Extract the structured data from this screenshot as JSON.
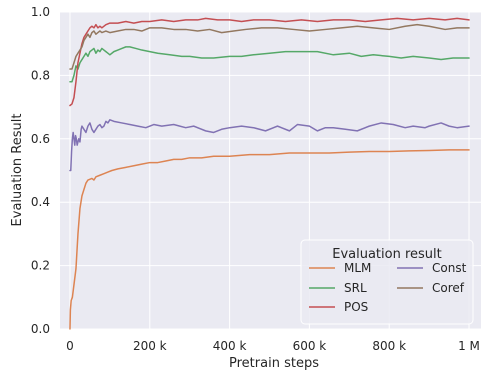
{
  "chart_data": {
    "type": "line",
    "xlabel": "Pretrain steps",
    "ylabel": "Evaluation Result",
    "xlim": [
      -25000,
      1030000
    ],
    "ylim": [
      0,
      1.0
    ],
    "x_ticks": [
      0,
      200000,
      400000,
      600000,
      800000,
      1000000
    ],
    "x_tick_labels": [
      "0",
      "200 k",
      "400 k",
      "600 k",
      "800 k",
      "1 M"
    ],
    "y_ticks": [
      0.0,
      0.2,
      0.4,
      0.6,
      0.8,
      1.0
    ],
    "y_tick_labels": [
      "0.0",
      "0.2",
      "0.4",
      "0.6",
      "0.8",
      "1.0"
    ],
    "grid": true,
    "legend": {
      "title": "Evaluation result",
      "placement": "lower-right",
      "columns": 2
    },
    "series": [
      {
        "name": "MLM",
        "color": "#dd8452",
        "points": [
          [
            0,
            0.0
          ],
          [
            1000,
            0.06
          ],
          [
            3000,
            0.09
          ],
          [
            6000,
            0.1
          ],
          [
            10000,
            0.14
          ],
          [
            15000,
            0.19
          ],
          [
            20000,
            0.3
          ],
          [
            25000,
            0.38
          ],
          [
            30000,
            0.42
          ],
          [
            35000,
            0.44
          ],
          [
            40000,
            0.46
          ],
          [
            45000,
            0.47
          ],
          [
            55000,
            0.475
          ],
          [
            60000,
            0.47
          ],
          [
            65000,
            0.48
          ],
          [
            75000,
            0.485
          ],
          [
            85000,
            0.49
          ],
          [
            95000,
            0.495
          ],
          [
            105000,
            0.5
          ],
          [
            120000,
            0.505
          ],
          [
            140000,
            0.51
          ],
          [
            160000,
            0.515
          ],
          [
            180000,
            0.52
          ],
          [
            200000,
            0.525
          ],
          [
            220000,
            0.525
          ],
          [
            240000,
            0.53
          ],
          [
            260000,
            0.535
          ],
          [
            280000,
            0.535
          ],
          [
            300000,
            0.54
          ],
          [
            330000,
            0.54
          ],
          [
            360000,
            0.545
          ],
          [
            400000,
            0.545
          ],
          [
            450000,
            0.55
          ],
          [
            500000,
            0.55
          ],
          [
            550000,
            0.555
          ],
          [
            600000,
            0.555
          ],
          [
            650000,
            0.555
          ],
          [
            700000,
            0.558
          ],
          [
            750000,
            0.56
          ],
          [
            800000,
            0.56
          ],
          [
            850000,
            0.562
          ],
          [
            900000,
            0.563
          ],
          [
            950000,
            0.565
          ],
          [
            1000000,
            0.565
          ]
        ]
      },
      {
        "name": "SRL",
        "color": "#55a868",
        "points": [
          [
            0,
            0.78
          ],
          [
            5000,
            0.78
          ],
          [
            10000,
            0.8
          ],
          [
            15000,
            0.83
          ],
          [
            20000,
            0.82
          ],
          [
            25000,
            0.84
          ],
          [
            30000,
            0.85
          ],
          [
            35000,
            0.86
          ],
          [
            40000,
            0.87
          ],
          [
            45000,
            0.86
          ],
          [
            50000,
            0.875
          ],
          [
            55000,
            0.88
          ],
          [
            60000,
            0.885
          ],
          [
            65000,
            0.87
          ],
          [
            70000,
            0.88
          ],
          [
            75000,
            0.875
          ],
          [
            80000,
            0.885
          ],
          [
            85000,
            0.88
          ],
          [
            90000,
            0.875
          ],
          [
            95000,
            0.87
          ],
          [
            100000,
            0.865
          ],
          [
            110000,
            0.875
          ],
          [
            120000,
            0.88
          ],
          [
            130000,
            0.885
          ],
          [
            140000,
            0.89
          ],
          [
            150000,
            0.89
          ],
          [
            165000,
            0.885
          ],
          [
            180000,
            0.88
          ],
          [
            200000,
            0.875
          ],
          [
            220000,
            0.87
          ],
          [
            250000,
            0.865
          ],
          [
            280000,
            0.86
          ],
          [
            300000,
            0.86
          ],
          [
            330000,
            0.855
          ],
          [
            360000,
            0.855
          ],
          [
            400000,
            0.86
          ],
          [
            430000,
            0.86
          ],
          [
            460000,
            0.865
          ],
          [
            500000,
            0.87
          ],
          [
            540000,
            0.875
          ],
          [
            580000,
            0.875
          ],
          [
            620000,
            0.875
          ],
          [
            660000,
            0.865
          ],
          [
            700000,
            0.87
          ],
          [
            730000,
            0.86
          ],
          [
            760000,
            0.865
          ],
          [
            800000,
            0.86
          ],
          [
            830000,
            0.855
          ],
          [
            860000,
            0.86
          ],
          [
            900000,
            0.855
          ],
          [
            930000,
            0.85
          ],
          [
            960000,
            0.855
          ],
          [
            1000000,
            0.855
          ]
        ]
      },
      {
        "name": "POS",
        "color": "#c44e52",
        "points": [
          [
            0,
            0.705
          ],
          [
            5000,
            0.71
          ],
          [
            10000,
            0.73
          ],
          [
            15000,
            0.78
          ],
          [
            20000,
            0.84
          ],
          [
            25000,
            0.87
          ],
          [
            30000,
            0.9
          ],
          [
            35000,
            0.92
          ],
          [
            40000,
            0.93
          ],
          [
            45000,
            0.94
          ],
          [
            50000,
            0.95
          ],
          [
            55000,
            0.955
          ],
          [
            60000,
            0.95
          ],
          [
            65000,
            0.96
          ],
          [
            70000,
            0.95
          ],
          [
            75000,
            0.955
          ],
          [
            80000,
            0.95
          ],
          [
            90000,
            0.96
          ],
          [
            100000,
            0.965
          ],
          [
            120000,
            0.965
          ],
          [
            140000,
            0.97
          ],
          [
            160000,
            0.965
          ],
          [
            180000,
            0.97
          ],
          [
            200000,
            0.97
          ],
          [
            230000,
            0.975
          ],
          [
            260000,
            0.97
          ],
          [
            290000,
            0.975
          ],
          [
            320000,
            0.975
          ],
          [
            340000,
            0.98
          ],
          [
            370000,
            0.975
          ],
          [
            400000,
            0.975
          ],
          [
            430000,
            0.97
          ],
          [
            460000,
            0.975
          ],
          [
            500000,
            0.975
          ],
          [
            540000,
            0.97
          ],
          [
            580000,
            0.975
          ],
          [
            620000,
            0.97
          ],
          [
            660000,
            0.975
          ],
          [
            700000,
            0.975
          ],
          [
            740000,
            0.97
          ],
          [
            780000,
            0.975
          ],
          [
            820000,
            0.98
          ],
          [
            860000,
            0.975
          ],
          [
            900000,
            0.98
          ],
          [
            940000,
            0.975
          ],
          [
            970000,
            0.98
          ],
          [
            1000000,
            0.975
          ]
        ]
      },
      {
        "name": "Const",
        "color": "#8172b3",
        "points": [
          [
            0,
            0.5
          ],
          [
            2000,
            0.5
          ],
          [
            4000,
            0.56
          ],
          [
            6000,
            0.6
          ],
          [
            8000,
            0.62
          ],
          [
            10000,
            0.6
          ],
          [
            12000,
            0.58
          ],
          [
            14000,
            0.61
          ],
          [
            16000,
            0.6
          ],
          [
            18000,
            0.58
          ],
          [
            20000,
            0.59
          ],
          [
            22000,
            0.6
          ],
          [
            25000,
            0.59
          ],
          [
            28000,
            0.63
          ],
          [
            30000,
            0.64
          ],
          [
            35000,
            0.63
          ],
          [
            40000,
            0.62
          ],
          [
            45000,
            0.64
          ],
          [
            50000,
            0.65
          ],
          [
            55000,
            0.63
          ],
          [
            60000,
            0.62
          ],
          [
            65000,
            0.63
          ],
          [
            70000,
            0.64
          ],
          [
            75000,
            0.645
          ],
          [
            80000,
            0.635
          ],
          [
            85000,
            0.64
          ],
          [
            90000,
            0.655
          ],
          [
            95000,
            0.65
          ],
          [
            100000,
            0.66
          ],
          [
            110000,
            0.655
          ],
          [
            130000,
            0.65
          ],
          [
            150000,
            0.645
          ],
          [
            170000,
            0.64
          ],
          [
            190000,
            0.635
          ],
          [
            210000,
            0.645
          ],
          [
            230000,
            0.64
          ],
          [
            260000,
            0.645
          ],
          [
            290000,
            0.635
          ],
          [
            310000,
            0.64
          ],
          [
            340000,
            0.625
          ],
          [
            360000,
            0.62
          ],
          [
            380000,
            0.63
          ],
          [
            400000,
            0.635
          ],
          [
            430000,
            0.64
          ],
          [
            460000,
            0.635
          ],
          [
            490000,
            0.625
          ],
          [
            520000,
            0.64
          ],
          [
            550000,
            0.625
          ],
          [
            570000,
            0.645
          ],
          [
            600000,
            0.64
          ],
          [
            620000,
            0.625
          ],
          [
            640000,
            0.635
          ],
          [
            660000,
            0.635
          ],
          [
            690000,
            0.63
          ],
          [
            720000,
            0.625
          ],
          [
            750000,
            0.64
          ],
          [
            780000,
            0.65
          ],
          [
            810000,
            0.645
          ],
          [
            840000,
            0.635
          ],
          [
            860000,
            0.64
          ],
          [
            890000,
            0.635
          ],
          [
            900000,
            0.64
          ],
          [
            930000,
            0.65
          ],
          [
            950000,
            0.64
          ],
          [
            970000,
            0.635
          ],
          [
            1000000,
            0.64
          ]
        ]
      },
      {
        "name": "Coref",
        "color": "#937860",
        "points": [
          [
            0,
            0.82
          ],
          [
            5000,
            0.82
          ],
          [
            10000,
            0.84
          ],
          [
            15000,
            0.86
          ],
          [
            20000,
            0.87
          ],
          [
            25000,
            0.88
          ],
          [
            30000,
            0.89
          ],
          [
            35000,
            0.91
          ],
          [
            40000,
            0.92
          ],
          [
            45000,
            0.93
          ],
          [
            50000,
            0.92
          ],
          [
            55000,
            0.935
          ],
          [
            60000,
            0.94
          ],
          [
            65000,
            0.93
          ],
          [
            70000,
            0.935
          ],
          [
            75000,
            0.94
          ],
          [
            80000,
            0.935
          ],
          [
            90000,
            0.94
          ],
          [
            100000,
            0.935
          ],
          [
            120000,
            0.94
          ],
          [
            140000,
            0.945
          ],
          [
            160000,
            0.945
          ],
          [
            180000,
            0.94
          ],
          [
            200000,
            0.95
          ],
          [
            230000,
            0.95
          ],
          [
            260000,
            0.945
          ],
          [
            290000,
            0.945
          ],
          [
            320000,
            0.94
          ],
          [
            350000,
            0.945
          ],
          [
            380000,
            0.935
          ],
          [
            410000,
            0.94
          ],
          [
            440000,
            0.945
          ],
          [
            480000,
            0.95
          ],
          [
            520000,
            0.95
          ],
          [
            560000,
            0.945
          ],
          [
            600000,
            0.94
          ],
          [
            640000,
            0.945
          ],
          [
            680000,
            0.95
          ],
          [
            720000,
            0.955
          ],
          [
            760000,
            0.95
          ],
          [
            800000,
            0.945
          ],
          [
            840000,
            0.955
          ],
          [
            870000,
            0.96
          ],
          [
            900000,
            0.955
          ],
          [
            940000,
            0.945
          ],
          [
            970000,
            0.95
          ],
          [
            1000000,
            0.95
          ]
        ]
      }
    ]
  }
}
